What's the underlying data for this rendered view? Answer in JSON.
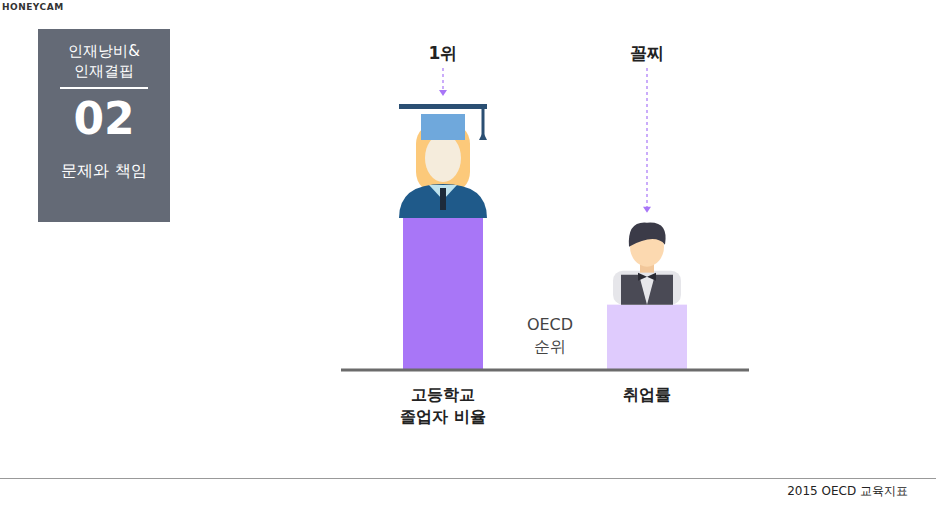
{
  "chart_data": {
    "type": "bar",
    "categories": [
      "고등학교 졸업자 비율",
      "취업률"
    ],
    "values": [
      100,
      43
    ],
    "colors": [
      "#a876f7",
      "#dfcbfd"
    ],
    "annotations": [
      "1위",
      "꼴찌"
    ],
    "xlabel": "OECD 순위",
    "tick_labels": "x"
  },
  "panel": {
    "lines": [
      "인재낭비&",
      "인재결핍"
    ],
    "number": "02",
    "caption": "문제와 책임"
  },
  "source": "2015 OECD 교육지표",
  "watermark": "HONEYCAM"
}
